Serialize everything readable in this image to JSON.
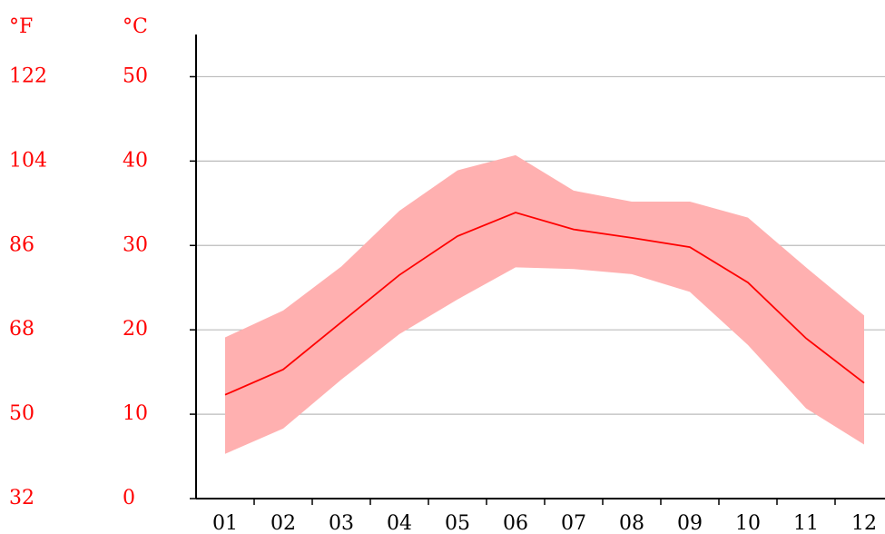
{
  "chart_data": {
    "type": "range-line",
    "y_label": "°C",
    "y2_label": "°F",
    "categories": [
      "01",
      "02",
      "03",
      "04",
      "05",
      "06",
      "07",
      "08",
      "09",
      "10",
      "11",
      "12"
    ],
    "series": [
      {
        "name": "max",
        "color": "#ffb0b0",
        "values": [
          19.1,
          22.3,
          27.5,
          34.1,
          38.9,
          40.7,
          36.5,
          35.2,
          35.2,
          33.3,
          27.4,
          21.7
        ]
      },
      {
        "name": "min",
        "color": "#ffb0b0",
        "values": [
          5.3,
          8.3,
          14.1,
          19.5,
          23.6,
          27.4,
          27.2,
          26.6,
          24.5,
          18.2,
          10.7,
          6.4
        ]
      },
      {
        "name": "mean",
        "color": "#ff0000",
        "values": [
          12.3,
          15.3,
          20.9,
          26.5,
          31.1,
          33.9,
          31.9,
          30.9,
          29.8,
          25.6,
          19.0,
          13.7
        ]
      }
    ],
    "ylim": [
      0,
      55
    ],
    "yticks": [
      0,
      10,
      20,
      30,
      40,
      50
    ],
    "y2lim": [
      32,
      131
    ],
    "y2ticks": [
      32,
      50,
      68,
      86,
      104,
      122
    ],
    "grid": true
  }
}
